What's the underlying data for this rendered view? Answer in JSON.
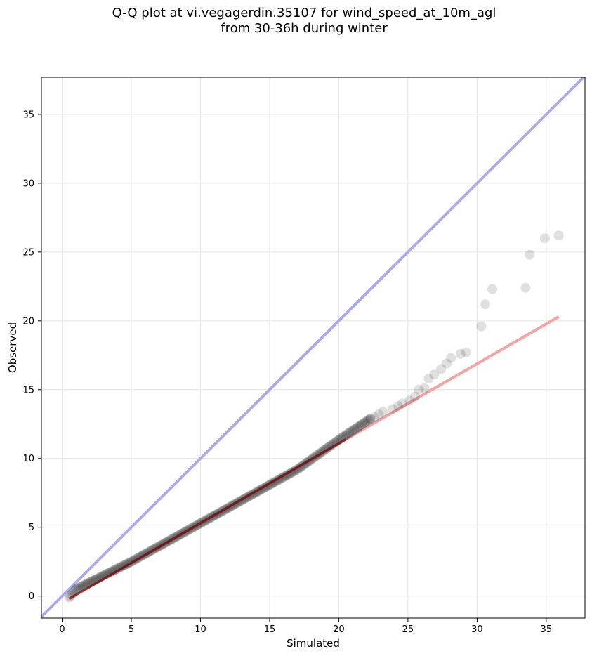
{
  "chart_data": {
    "type": "scatter",
    "title_line1": "Q-Q plot at vi.vegagerdin.35107 for wind_speed_at_10m_agl",
    "title_line2": "from 30-36h during winter",
    "xlabel": "Simulated",
    "ylabel": "Observed",
    "xlim": [
      -1.5,
      37.8
    ],
    "ylim": [
      -1.6,
      37.7
    ],
    "xticks": [
      0,
      5,
      10,
      15,
      20,
      25,
      30,
      35
    ],
    "yticks": [
      0,
      5,
      10,
      15,
      20,
      25,
      30,
      35
    ],
    "grid": true,
    "identity_line": {
      "color": "#aaaaee",
      "from": [
        -1.5,
        -1.5
      ],
      "to": [
        37.8,
        37.8
      ]
    },
    "fit_line": {
      "color": "#f5a3a3",
      "from": [
        0.5,
        -0.2
      ],
      "to": [
        35.9,
        20.3
      ]
    },
    "outlier_points": [
      [
        22.3,
        12.9
      ],
      [
        22.6,
        13.0
      ],
      [
        22.9,
        13.2
      ],
      [
        23.2,
        13.4
      ],
      [
        23.9,
        13.6
      ],
      [
        24.3,
        13.8
      ],
      [
        24.6,
        14.0
      ],
      [
        25.1,
        14.2
      ],
      [
        25.5,
        14.5
      ],
      [
        25.8,
        15.0
      ],
      [
        26.2,
        15.1
      ],
      [
        26.5,
        15.8
      ],
      [
        26.9,
        16.1
      ],
      [
        27.4,
        16.5
      ],
      [
        27.8,
        16.9
      ],
      [
        28.1,
        17.3
      ],
      [
        28.8,
        17.6
      ],
      [
        29.2,
        17.7
      ],
      [
        30.3,
        19.6
      ],
      [
        30.6,
        21.2
      ],
      [
        31.1,
        22.3
      ],
      [
        33.5,
        22.4
      ],
      [
        33.8,
        24.8
      ],
      [
        34.9,
        26.0
      ],
      [
        35.9,
        26.2
      ]
    ],
    "point_color": "#000000"
  },
  "colors": {
    "grid": "#e8e8e8",
    "frame": "#000000",
    "fit_core": "#7a0000"
  }
}
